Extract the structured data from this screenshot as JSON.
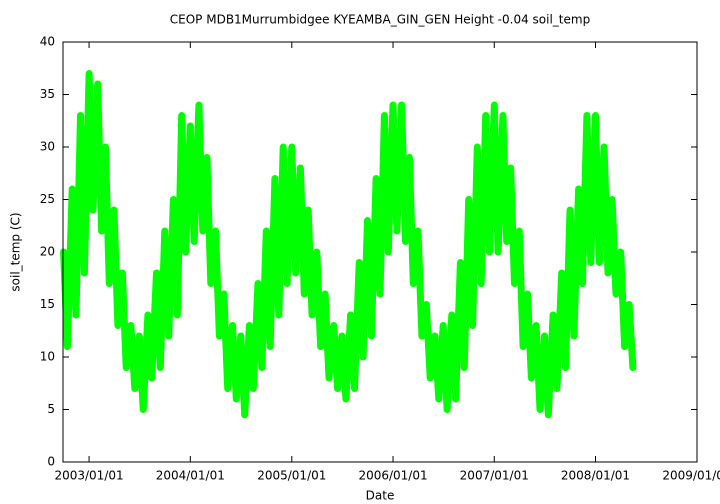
{
  "chart_data": {
    "type": "line",
    "title": "CEOP MDB1Murrumbidgee KYEAMBA_GIN_GEN Height -0.04 soil_temp",
    "x_label": "Date",
    "y_label": "soil_temp (C)",
    "x": [
      "2002/10/01",
      "2002/10/15",
      "2002/11/01",
      "2002/11/15",
      "2002/12/01",
      "2002/12/15",
      "2003/01/01",
      "2003/01/15",
      "2003/02/01",
      "2003/02/15",
      "2003/03/01",
      "2003/03/15",
      "2003/04/01",
      "2003/04/15",
      "2003/05/01",
      "2003/05/15",
      "2003/06/01",
      "2003/06/15",
      "2003/07/01",
      "2003/07/15",
      "2003/08/01",
      "2003/08/15",
      "2003/09/01",
      "2003/09/15",
      "2003/10/01",
      "2003/10/15",
      "2003/11/01",
      "2003/11/15",
      "2003/12/01",
      "2003/12/15",
      "2004/01/01",
      "2004/01/15",
      "2004/02/01",
      "2004/02/15",
      "2004/03/01",
      "2004/03/15",
      "2004/04/01",
      "2004/04/15",
      "2004/05/01",
      "2004/05/15",
      "2004/06/01",
      "2004/06/15",
      "2004/07/01",
      "2004/07/15",
      "2004/08/01",
      "2004/08/15",
      "2004/09/01",
      "2004/09/15",
      "2004/10/01",
      "2004/10/15",
      "2004/11/01",
      "2004/11/15",
      "2004/12/01",
      "2004/12/15",
      "2005/01/01",
      "2005/01/15",
      "2005/02/01",
      "2005/02/15",
      "2005/03/01",
      "2005/03/15",
      "2005/04/01",
      "2005/04/15",
      "2005/05/01",
      "2005/05/15",
      "2005/06/01",
      "2005/06/15",
      "2005/07/01",
      "2005/07/15",
      "2005/08/01",
      "2005/08/15",
      "2005/09/01",
      "2005/09/15",
      "2005/10/01",
      "2005/10/15",
      "2005/11/01",
      "2005/11/15",
      "2005/12/01",
      "2005/12/15",
      "2006/01/01",
      "2006/01/15",
      "2006/02/01",
      "2006/02/15",
      "2006/03/01",
      "2006/03/15",
      "2006/04/01",
      "2006/04/15",
      "2006/05/01",
      "2006/05/15",
      "2006/06/01",
      "2006/06/15",
      "2006/07/01",
      "2006/07/15",
      "2006/08/01",
      "2006/08/15",
      "2006/09/01",
      "2006/09/15",
      "2006/10/01",
      "2006/10/15",
      "2006/11/01",
      "2006/11/15",
      "2006/12/01",
      "2006/12/15",
      "2007/01/01",
      "2007/01/15",
      "2007/02/01",
      "2007/02/15",
      "2007/03/01",
      "2007/03/15",
      "2007/04/01",
      "2007/04/15",
      "2007/05/01",
      "2007/05/15",
      "2007/06/01",
      "2007/06/15",
      "2007/07/01",
      "2007/07/15",
      "2007/08/01",
      "2007/08/15",
      "2007/09/01",
      "2007/09/15",
      "2007/10/01",
      "2007/10/15",
      "2007/11/01",
      "2007/11/15",
      "2007/12/01",
      "2007/12/15",
      "2008/01/01",
      "2008/01/15",
      "2008/02/01",
      "2008/02/15",
      "2008/03/01",
      "2008/03/15",
      "2008/04/01",
      "2008/04/15",
      "2008/05/01",
      "2008/05/15"
    ],
    "series": [
      {
        "name": "soil_temp",
        "color": "#00ff00",
        "values": [
          20,
          11,
          26,
          14,
          33,
          18,
          37,
          24,
          36,
          22,
          30,
          17,
          24,
          13,
          18,
          9,
          13,
          7,
          12,
          5,
          14,
          8,
          18,
          9,
          22,
          12,
          25,
          14,
          33,
          20,
          32,
          21,
          34,
          22,
          29,
          17,
          22,
          12,
          16,
          7,
          13,
          6,
          12,
          4.5,
          13,
          7,
          17,
          9,
          22,
          11,
          27,
          14,
          30,
          17,
          30,
          18,
          28,
          16,
          24,
          14,
          20,
          11,
          16,
          8,
          13,
          7,
          12,
          6,
          14,
          7,
          19,
          10,
          23,
          12,
          27,
          16,
          33,
          20,
          34,
          22,
          34,
          21,
          29,
          17,
          22,
          12,
          15,
          8,
          12,
          6,
          13,
          5,
          14,
          6,
          19,
          9,
          25,
          13,
          30,
          17,
          33,
          20,
          34,
          20,
          33,
          21,
          28,
          17,
          22,
          11,
          16,
          8,
          13,
          5,
          12,
          4.5,
          14,
          7,
          18,
          9,
          24,
          12,
          26,
          17,
          33,
          19,
          33,
          19,
          30,
          18,
          25,
          16,
          20,
          11,
          15,
          9
        ]
      }
    ],
    "xlim": [
      "2002/09/29",
      "2009/01/01"
    ],
    "xticks": [
      "2003/01/01",
      "2004/01/01",
      "2005/01/01",
      "2006/01/01",
      "2007/01/01",
      "2008/01/01",
      "2009/01/01"
    ],
    "ylim": [
      0,
      40
    ],
    "yticks": [
      0,
      5,
      10,
      15,
      20,
      25,
      30,
      35,
      40
    ]
  }
}
